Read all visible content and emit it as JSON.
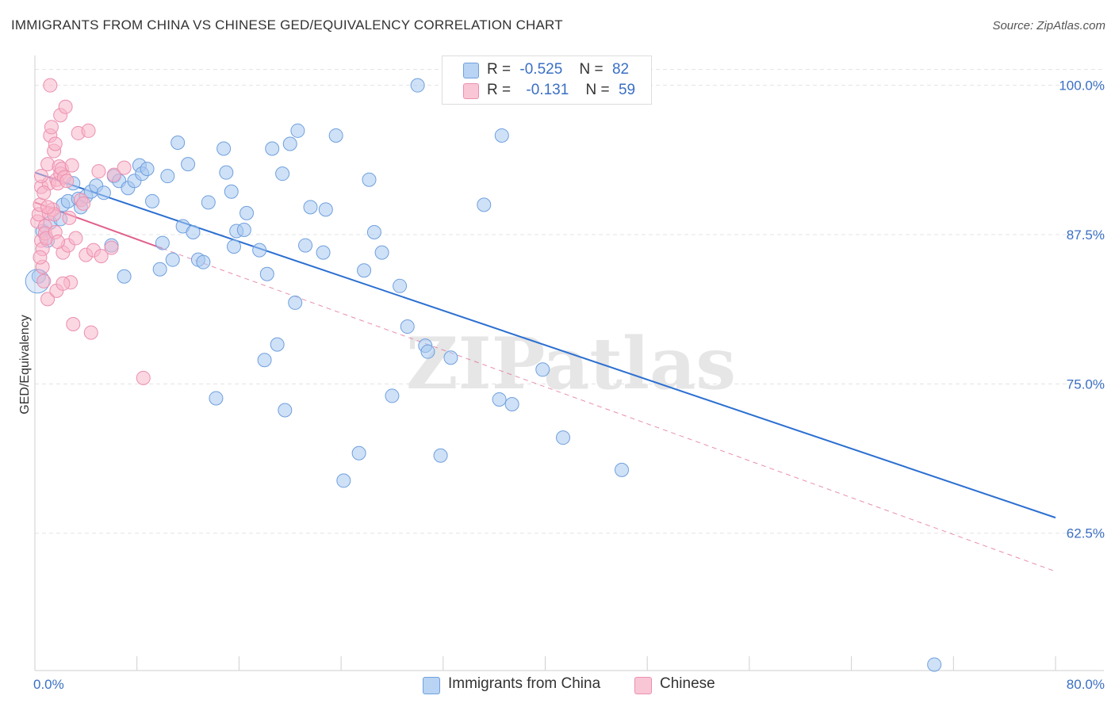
{
  "title": "IMMIGRANTS FROM CHINA VS CHINESE GED/EQUIVALENCY CORRELATION CHART",
  "source": "Source: ZipAtlas.com",
  "watermark": "ZIPatlas",
  "legend": {
    "rows": [
      {
        "r_label": "R =",
        "r_value": "-0.525",
        "n_label": "N =",
        "n_value": "82"
      },
      {
        "r_label": "R =",
        "r_value": "-0.131",
        "n_label": "N =",
        "n_value": "59"
      }
    ]
  },
  "colors": {
    "china_fill": "#a8c8f0",
    "china_stroke": "#6fa0de",
    "china_line": "#2b6fd1",
    "chinese_fill": "#f7b6cb",
    "chinese_stroke": "#ec8fae",
    "chinese_line": "#e0608c",
    "tick_text": "#3a6fc4",
    "grid": "#e3e3e3"
  },
  "chart_data": {
    "type": "scatter",
    "title": "IMMIGRANTS FROM CHINA VS CHINESE GED/EQUIVALENCY CORRELATION CHART",
    "xlabel": "",
    "ylabel": "GED/Equivalency",
    "xlim": [
      0,
      80
    ],
    "ylim": [
      51.0,
      102.5
    ],
    "x_tick_labels": [
      "0.0%",
      "80.0%"
    ],
    "y_ticks": [
      100.0,
      87.5,
      75.0,
      62.5
    ],
    "y_tick_labels": [
      "100.0%",
      "87.5%",
      "75.0%",
      "62.5%"
    ],
    "grid": true,
    "legend_position": "bottom",
    "series": [
      {
        "name": "Immigrants from China",
        "trend": {
          "x": [
            0,
            80
          ],
          "y": [
            92.7,
            63.8
          ],
          "style": "solid"
        },
        "points": [
          [
            0.3,
            84.0
          ],
          [
            0.6,
            87.8
          ],
          [
            1.0,
            87.0
          ],
          [
            1.2,
            88.5
          ],
          [
            2.0,
            88.8
          ],
          [
            2.2,
            90.0
          ],
          [
            2.6,
            90.3
          ],
          [
            3.0,
            91.8
          ],
          [
            3.4,
            90.5
          ],
          [
            3.6,
            89.8
          ],
          [
            4.0,
            90.7
          ],
          [
            4.4,
            91.1
          ],
          [
            4.8,
            91.6
          ],
          [
            5.4,
            91.0
          ],
          [
            6.0,
            86.6
          ],
          [
            6.2,
            92.4
          ],
          [
            6.6,
            92.0
          ],
          [
            7.0,
            84.0
          ],
          [
            7.3,
            91.4
          ],
          [
            7.8,
            92.0
          ],
          [
            8.2,
            93.3
          ],
          [
            8.4,
            92.6
          ],
          [
            8.8,
            93.0
          ],
          [
            9.2,
            90.3
          ],
          [
            9.8,
            84.6
          ],
          [
            10.0,
            86.8
          ],
          [
            10.4,
            92.4
          ],
          [
            10.8,
            85.4
          ],
          [
            11.2,
            95.2
          ],
          [
            11.6,
            88.2
          ],
          [
            12.0,
            93.4
          ],
          [
            12.4,
            87.7
          ],
          [
            12.8,
            85.4
          ],
          [
            13.2,
            85.2
          ],
          [
            13.6,
            90.2
          ],
          [
            14.2,
            73.8
          ],
          [
            14.8,
            94.7
          ],
          [
            15.0,
            92.7
          ],
          [
            15.4,
            91.1
          ],
          [
            15.6,
            86.5
          ],
          [
            15.8,
            87.8
          ],
          [
            16.4,
            87.9
          ],
          [
            16.6,
            89.3
          ],
          [
            17.6,
            86.2
          ],
          [
            18.0,
            77.0
          ],
          [
            18.2,
            84.2
          ],
          [
            18.6,
            94.7
          ],
          [
            19.0,
            78.3
          ],
          [
            19.4,
            92.6
          ],
          [
            19.6,
            72.8
          ],
          [
            20.0,
            95.1
          ],
          [
            20.4,
            81.8
          ],
          [
            20.6,
            96.2
          ],
          [
            21.2,
            86.6
          ],
          [
            21.6,
            89.8
          ],
          [
            22.6,
            86.0
          ],
          [
            22.8,
            89.6
          ],
          [
            23.6,
            95.8
          ],
          [
            24.2,
            66.9
          ],
          [
            25.4,
            69.2
          ],
          [
            25.8,
            84.5
          ],
          [
            26.2,
            92.1
          ],
          [
            26.6,
            87.7
          ],
          [
            27.2,
            86.0
          ],
          [
            28.0,
            74.0
          ],
          [
            28.6,
            83.2
          ],
          [
            29.2,
            79.8
          ],
          [
            30.0,
            100.0
          ],
          [
            30.6,
            78.2
          ],
          [
            30.8,
            77.7
          ],
          [
            31.8,
            69.0
          ],
          [
            32.6,
            77.2
          ],
          [
            33.8,
            100.0
          ],
          [
            34.0,
            99.5
          ],
          [
            35.2,
            90.0
          ],
          [
            36.4,
            73.7
          ],
          [
            36.6,
            95.8
          ],
          [
            37.4,
            73.3
          ],
          [
            39.8,
            76.2
          ],
          [
            41.4,
            70.5
          ],
          [
            46.0,
            67.8
          ],
          [
            70.5,
            51.5
          ]
        ]
      },
      {
        "name": "Chinese",
        "trend": {
          "x": [
            0,
            80
          ],
          "y": [
            90.2,
            59.3
          ],
          "style": "solid-then-dashed",
          "solid_until_x": 10.0
        },
        "points": [
          [
            0.2,
            88.6
          ],
          [
            0.3,
            89.2
          ],
          [
            0.4,
            90.0
          ],
          [
            0.5,
            91.5
          ],
          [
            0.5,
            87.0
          ],
          [
            0.6,
            86.3
          ],
          [
            0.6,
            84.8
          ],
          [
            0.7,
            83.6
          ],
          [
            0.8,
            88.2
          ],
          [
            0.8,
            87.6
          ],
          [
            0.9,
            87.2
          ],
          [
            1.0,
            93.4
          ],
          [
            1.0,
            82.1
          ],
          [
            1.1,
            89.3
          ],
          [
            1.1,
            91.8
          ],
          [
            1.2,
            100.0
          ],
          [
            1.2,
            95.8
          ],
          [
            1.3,
            96.5
          ],
          [
            1.4,
            89.6
          ],
          [
            1.5,
            89.2
          ],
          [
            1.5,
            94.5
          ],
          [
            1.6,
            95.1
          ],
          [
            1.6,
            87.7
          ],
          [
            1.7,
            92.1
          ],
          [
            1.7,
            82.8
          ],
          [
            1.8,
            91.8
          ],
          [
            1.9,
            93.2
          ],
          [
            2.0,
            92.6
          ],
          [
            2.0,
            97.5
          ],
          [
            2.1,
            93.0
          ],
          [
            2.2,
            86.0
          ],
          [
            2.3,
            92.3
          ],
          [
            2.4,
            98.2
          ],
          [
            2.5,
            92.0
          ],
          [
            2.6,
            86.6
          ],
          [
            2.7,
            88.9
          ],
          [
            2.8,
            83.5
          ],
          [
            2.9,
            93.3
          ],
          [
            3.0,
            80.0
          ],
          [
            3.2,
            87.2
          ],
          [
            3.4,
            96.0
          ],
          [
            3.6,
            90.4
          ],
          [
            4.0,
            85.8
          ],
          [
            4.2,
            96.2
          ],
          [
            4.4,
            79.3
          ],
          [
            4.6,
            86.2
          ],
          [
            5.0,
            92.8
          ],
          [
            5.2,
            85.7
          ],
          [
            6.0,
            86.4
          ],
          [
            6.2,
            92.5
          ],
          [
            7.0,
            93.1
          ],
          [
            8.5,
            75.5
          ],
          [
            0.5,
            92.4
          ],
          [
            1.0,
            89.8
          ],
          [
            1.8,
            86.9
          ],
          [
            2.2,
            83.4
          ],
          [
            0.4,
            85.6
          ],
          [
            0.7,
            91.0
          ],
          [
            3.8,
            90.1
          ]
        ]
      }
    ]
  },
  "bottom_legend": {
    "china_label": "Immigrants from China",
    "chinese_label": "Chinese"
  }
}
